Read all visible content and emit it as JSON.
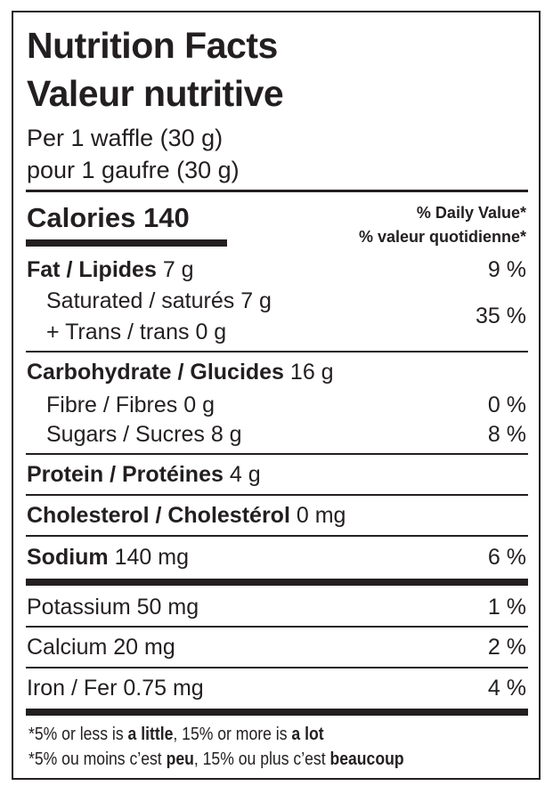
{
  "title_en": "Nutrition Facts",
  "title_fr": "Valeur nutritive",
  "serving_en": "Per 1 waffle (30 g)",
  "serving_fr": "pour 1 gaufre (30 g)",
  "calories": {
    "label": "Calories",
    "value": "140"
  },
  "dv_header_en": "% Daily Value*",
  "dv_header_fr": "% valeur quotidienne*",
  "fat": {
    "label": "Fat / Lipides",
    "amount": "7 g",
    "dv": "9 %"
  },
  "saturated": {
    "label": "Saturated / saturés",
    "amount": "7 g"
  },
  "trans": {
    "label": "+ Trans / trans",
    "amount": "0 g"
  },
  "sat_trans_dv": "35 %",
  "carbohydrate": {
    "label": "Carbohydrate / Glucides",
    "amount": "16 g"
  },
  "fibre": {
    "label": "Fibre / Fibres",
    "amount": "0 g",
    "dv": "0 %"
  },
  "sugars": {
    "label": "Sugars / Sucres",
    "amount": "8 g",
    "dv": "8 %"
  },
  "protein": {
    "label": "Protein / Protéines",
    "amount": "4 g"
  },
  "cholesterol": {
    "label": "Cholesterol / Cholestérol",
    "amount": "0 mg"
  },
  "sodium": {
    "label": "Sodium",
    "amount": "140 mg",
    "dv": "6 %"
  },
  "potassium": {
    "label": "Potassium 50 mg",
    "dv": "1 %"
  },
  "calcium": {
    "label": "Calcium 20 mg",
    "dv": "2 %"
  },
  "iron": {
    "label": "Iron / Fer 0.75 mg",
    "dv": "4 %"
  },
  "footnote_en": {
    "a": "*5% or less is ",
    "b": "a little",
    "c": ", 15% or more is ",
    "d": "a lot"
  },
  "footnote_fr": {
    "a": "*5% ou moins c’est ",
    "b": "peu",
    "c": ", 15% ou plus c’est ",
    "d": "beaucoup"
  }
}
